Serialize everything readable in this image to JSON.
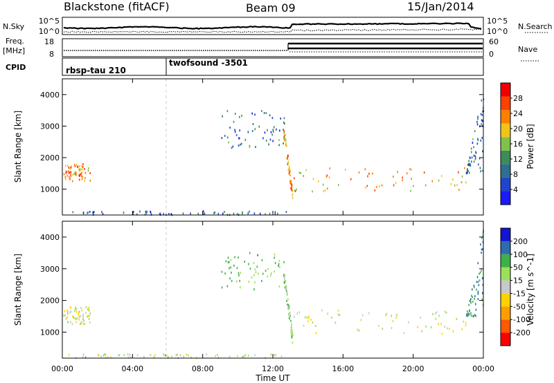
{
  "header": {
    "title": "Blackstone (fitACF)",
    "beam": "Beam 09",
    "date": "15/Jan/2014"
  },
  "side_labels": {
    "nsky": "N.Sky",
    "freq": "Freq.",
    "freq_unit": "[MHz]",
    "cpid": "CPID",
    "nsearch": "N.Search",
    "nave": "Nave"
  },
  "noise_panel": {
    "left_ticks": [
      "10^5",
      "10^0"
    ],
    "right_ticks": [
      "10^5",
      "10^0"
    ]
  },
  "freq_panel": {
    "left_ticks": [
      "18",
      "8"
    ],
    "right_ticks": [
      "60",
      "0"
    ]
  },
  "cpid_programs": [
    {
      "name": "rbsp-tau 210",
      "start_hour": 0
    },
    {
      "name": "twofsound -3501",
      "start_hour": 6
    }
  ],
  "colors": {
    "power_scale": [
      "#1a1aff",
      "#2244cc",
      "#2f6e8e",
      "#3c8c5a",
      "#7fc24a",
      "#f2c418",
      "#ff8000",
      "#ff4000",
      "#ee0000"
    ],
    "velocity_scale": [
      "#ff0000",
      "#ff5a00",
      "#ff9c00",
      "#ffd200",
      "#c8c8c8",
      "#9be05a",
      "#3fb048",
      "#2c6cb0",
      "#1414d2"
    ],
    "gap_line": "#cccccc"
  },
  "chart_data": {
    "type": "heatmap",
    "x_unit": "hours UT",
    "xlim": [
      0,
      24
    ],
    "x_ticks": [
      0,
      4,
      8,
      12,
      16,
      20,
      24
    ],
    "x_tick_labels": [
      "00:00",
      "04:00",
      "08:00",
      "12:00",
      "16:00",
      "20:00",
      "00:00"
    ],
    "xlabel": "Time UT",
    "panels": [
      {
        "name": "power",
        "ylabel": "Slant Range [km]",
        "ylim": [
          180,
          4500
        ],
        "y_ticks": [
          1000,
          2000,
          3000,
          4000
        ],
        "colorbar": {
          "label": "Power [dB]",
          "range": [
            0,
            32
          ],
          "ticks": [
            4,
            8,
            12,
            16,
            20,
            24,
            28
          ]
        }
      },
      {
        "name": "velocity",
        "ylabel": "Slant Range [km]",
        "ylim": [
          180,
          4500
        ],
        "y_ticks": [
          1000,
          2000,
          3000,
          4000
        ],
        "colorbar": {
          "label": "Velocity [m s^-1]",
          "ticks": [
            -200,
            -100,
            -50,
            -15,
            15,
            50,
            100,
            200
          ]
        }
      }
    ],
    "echo_regions": [
      {
        "t_start": 0.0,
        "t_end": 1.6,
        "range_min": 1250,
        "range_max": 1800,
        "power_dB": 26,
        "velocity": 0
      },
      {
        "t_start": 9.0,
        "t_end": 12.7,
        "range_min": 2300,
        "range_max": 3500,
        "power_dB": 10,
        "velocity": 60
      },
      {
        "t_start": 12.6,
        "t_end": 13.1,
        "range_min": 800,
        "range_max": 2800,
        "power_dB": 26,
        "velocity": 30
      },
      {
        "t_start": 13.1,
        "t_end": 23.2,
        "range_min": 900,
        "range_max": 1700,
        "power_dB": 24,
        "velocity": 0
      },
      {
        "t_start": 23.0,
        "t_end": 24.0,
        "range_min": 1500,
        "range_max": 4400,
        "power_dB": 10,
        "velocity": 100
      },
      {
        "t_start": 0.0,
        "t_end": 12.8,
        "range_min": 180,
        "range_max": 300,
        "power_dB": 8,
        "velocity": 15
      }
    ]
  }
}
